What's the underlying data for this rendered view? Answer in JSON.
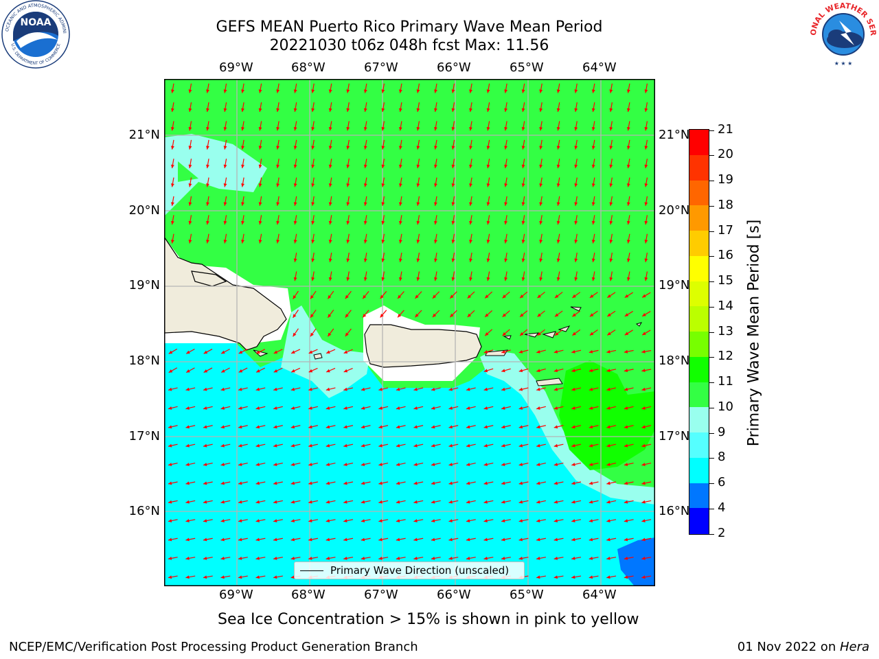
{
  "title_line1": "GEFS MEAN Puerto Rico Primary Wave Mean Period",
  "title_line2": "20221030 t06z 048h fcst   Max: 11.56",
  "lon_labels": [
    "69°W",
    "68°W",
    "67°W",
    "66°W",
    "65°W",
    "64°W"
  ],
  "lat_labels": [
    "21°N",
    "20°N",
    "19°N",
    "18°N",
    "17°N",
    "16°N"
  ],
  "legend_label": "Primary Wave Direction (unscaled)",
  "colorbar": {
    "title": "Primary Wave Mean Period [s]",
    "ticks": [
      "2",
      "4",
      "6",
      "8",
      "9",
      "10",
      "11",
      "12",
      "13",
      "14",
      "15",
      "16",
      "17",
      "18",
      "19",
      "20",
      "21"
    ],
    "colors": [
      "#0000ff",
      "#0077ff",
      "#00ffff",
      "#55ffff",
      "#99ffee",
      "#33ff44",
      "#11ff00",
      "#77ff00",
      "#bbff00",
      "#ddff00",
      "#ffff00",
      "#ffcc00",
      "#ff9900",
      "#ff6600",
      "#ff3300",
      "#ff0000"
    ]
  },
  "footnote": "Sea Ice Concentration > 15% is shown in pink to yellow",
  "branch": "NCEP/EMC/Verification Post Processing Product Generation Branch",
  "date_prefix": "01 Nov 2022 on ",
  "date_machine": "Hera",
  "logos": {
    "noaa_text": "NOAA",
    "noaa_ring": "NATIONAL OCEANIC AND ATMOSPHERIC ADMINISTRATION",
    "noaa_ring_bottom": "U.S. DEPARTMENT OF COMMERCE",
    "nws_ring": "NATIONAL WEATHER SERVICE"
  },
  "map_colors": {
    "ocean_north": "#33ff44",
    "ocean_south": "#00ffff",
    "transition": "#99ffee",
    "green_patch": "#11ff00",
    "deep_blue": "#0077ff",
    "land": "#f0ecdc",
    "arrow": "#ff0000"
  }
}
